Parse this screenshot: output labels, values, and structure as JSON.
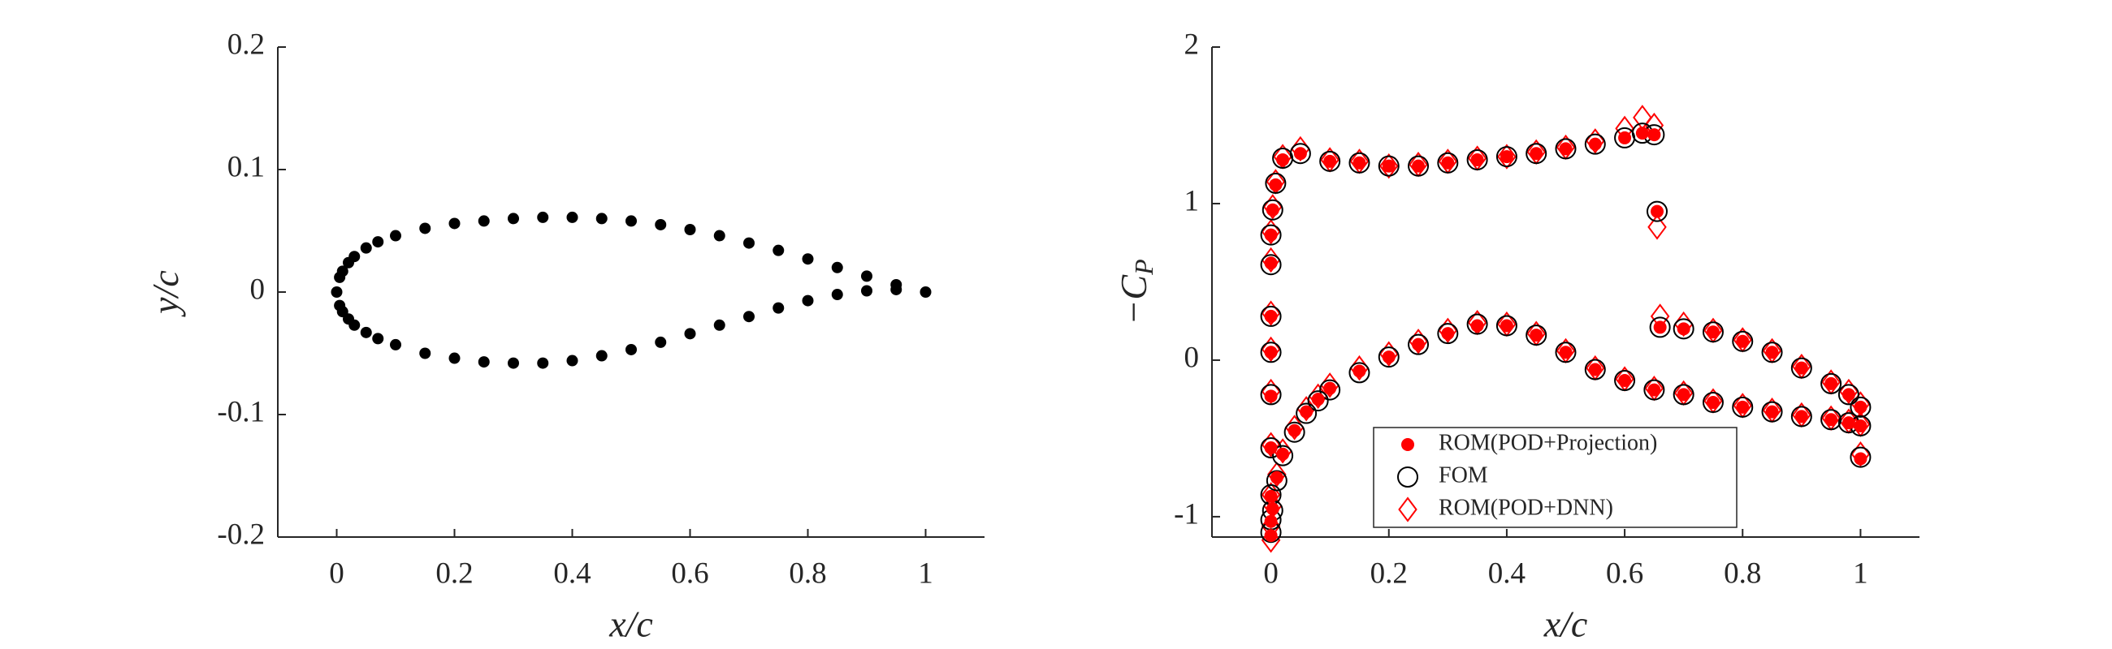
{
  "chart_data": [
    {
      "type": "scatter",
      "xlabel": "x/c",
      "ylabel": "y/c",
      "color": "#000000",
      "xlim": [
        -0.1,
        1.1
      ],
      "ylim": [
        -0.2,
        0.2
      ],
      "xticks": [
        0,
        0.2,
        0.4,
        0.6,
        0.8,
        1
      ],
      "yticks": [
        -0.2,
        -0.1,
        0,
        0.1,
        0.2
      ],
      "x": [
        0,
        0.005,
        0.01,
        0.02,
        0.03,
        0.05,
        0.07,
        0.1,
        0.15,
        0.2,
        0.25,
        0.3,
        0.35,
        0.4,
        0.45,
        0.5,
        0.55,
        0.6,
        0.65,
        0.7,
        0.75,
        0.8,
        0.85,
        0.9,
        0.95,
        1,
        0.005,
        0.01,
        0.02,
        0.03,
        0.05,
        0.07,
        0.1,
        0.15,
        0.2,
        0.25,
        0.3,
        0.35,
        0.4,
        0.45,
        0.5,
        0.55,
        0.6,
        0.65,
        0.7,
        0.75,
        0.8,
        0.85,
        0.9,
        0.95
      ],
      "values": [
        0,
        0.012,
        0.017,
        0.024,
        0.029,
        0.036,
        0.041,
        0.046,
        0.052,
        0.056,
        0.058,
        0.06,
        0.061,
        0.061,
        0.06,
        0.058,
        0.055,
        0.051,
        0.046,
        0.04,
        0.034,
        0.027,
        0.02,
        0.013,
        0.006,
        0,
        -0.011,
        -0.016,
        -0.022,
        -0.027,
        -0.033,
        -0.038,
        -0.043,
        -0.05,
        -0.054,
        -0.057,
        -0.058,
        -0.058,
        -0.056,
        -0.052,
        -0.047,
        -0.041,
        -0.034,
        -0.027,
        -0.02,
        -0.013,
        -0.007,
        -0.002,
        0.001,
        0.002
      ]
    },
    {
      "type": "scatter",
      "xlabel": "x/c",
      "ylabel": "−C",
      "ylabel_subscript": "P",
      "legend": "south",
      "xlim": [
        -0.1,
        1.1
      ],
      "ylim": [
        -1.13,
        2
      ],
      "xticks": [
        0,
        0.2,
        0.4,
        0.6,
        0.8,
        1
      ],
      "yticks": [
        -1,
        0,
        1,
        2
      ],
      "x": [
        0,
        0,
        0,
        0,
        0,
        0,
        0,
        0,
        0,
        0.003,
        0.008,
        0.02,
        0.05,
        0.1,
        0.15,
        0.2,
        0.25,
        0.3,
        0.35,
        0.4,
        0.45,
        0.5,
        0.55,
        0.6,
        0.63,
        0.65,
        0.655,
        0.66,
        0.7,
        0.75,
        0.8,
        0.85,
        0.9,
        0.95,
        0.98,
        1,
        0.003,
        0.01,
        0.02,
        0.04,
        0.06,
        0.08,
        0.1,
        0.15,
        0.2,
        0.25,
        0.3,
        0.35,
        0.4,
        0.45,
        0.5,
        0.55,
        0.6,
        0.65,
        0.7,
        0.75,
        0.8,
        0.85,
        0.9,
        0.95,
        0.98,
        1,
        1
      ],
      "series": [
        {
          "name": "ROM(POD+Projection)",
          "color": "#ff0000",
          "marker": "filled-circle",
          "values": [
            -1.12,
            -1.03,
            -0.87,
            -0.56,
            -0.23,
            0.05,
            0.28,
            0.62,
            0.8,
            0.96,
            1.12,
            1.28,
            1.32,
            1.27,
            1.26,
            1.24,
            1.24,
            1.26,
            1.28,
            1.3,
            1.32,
            1.35,
            1.38,
            1.42,
            1.45,
            1.44,
            0.95,
            0.21,
            0.2,
            0.18,
            0.12,
            0.05,
            -0.05,
            -0.15,
            -0.22,
            -0.3,
            -0.95,
            -0.75,
            -0.6,
            -0.45,
            -0.33,
            -0.25,
            -0.18,
            -0.07,
            0.02,
            0.1,
            0.17,
            0.22,
            0.22,
            0.16,
            0.05,
            -0.06,
            -0.13,
            -0.19,
            -0.22,
            -0.27,
            -0.3,
            -0.33,
            -0.36,
            -0.38,
            -0.4,
            -0.42,
            -0.63
          ]
        },
        {
          "name": "FOM",
          "color": "#000000",
          "marker": "circle",
          "values": [
            -1.1,
            -1.02,
            -0.86,
            -0.56,
            -0.22,
            0.05,
            0.28,
            0.61,
            0.8,
            0.96,
            1.13,
            1.29,
            1.32,
            1.27,
            1.26,
            1.24,
            1.24,
            1.26,
            1.28,
            1.3,
            1.32,
            1.35,
            1.38,
            1.42,
            1.45,
            1.44,
            0.95,
            0.21,
            0.2,
            0.18,
            0.12,
            0.05,
            -0.05,
            -0.15,
            -0.22,
            -0.3,
            -0.96,
            -0.77,
            -0.61,
            -0.46,
            -0.34,
            -0.26,
            -0.19,
            -0.08,
            0.02,
            0.1,
            0.17,
            0.23,
            0.22,
            0.16,
            0.05,
            -0.06,
            -0.13,
            -0.19,
            -0.22,
            -0.27,
            -0.3,
            -0.33,
            -0.36,
            -0.38,
            -0.4,
            -0.42,
            -0.62
          ]
        },
        {
          "name": "ROM(POD+DNN)",
          "color": "#ff0000",
          "marker": "diamond",
          "values": [
            -1.15,
            -1.06,
            -0.86,
            -0.54,
            -0.2,
            0.07,
            0.3,
            0.64,
            0.82,
            0.98,
            1.14,
            1.3,
            1.35,
            1.28,
            1.27,
            1.24,
            1.25,
            1.27,
            1.29,
            1.3,
            1.33,
            1.36,
            1.4,
            1.48,
            1.55,
            1.5,
            0.85,
            0.28,
            0.23,
            0.19,
            0.13,
            0.06,
            -0.04,
            -0.14,
            -0.2,
            -0.28,
            -0.93,
            -0.73,
            -0.58,
            -0.43,
            -0.31,
            -0.23,
            -0.16,
            -0.05,
            0.04,
            0.12,
            0.19,
            0.24,
            0.23,
            0.17,
            0.06,
            -0.05,
            -0.12,
            -0.18,
            -0.21,
            -0.26,
            -0.29,
            -0.32,
            -0.35,
            -0.37,
            -0.39,
            -0.41,
            -0.6
          ]
        }
      ]
    }
  ]
}
